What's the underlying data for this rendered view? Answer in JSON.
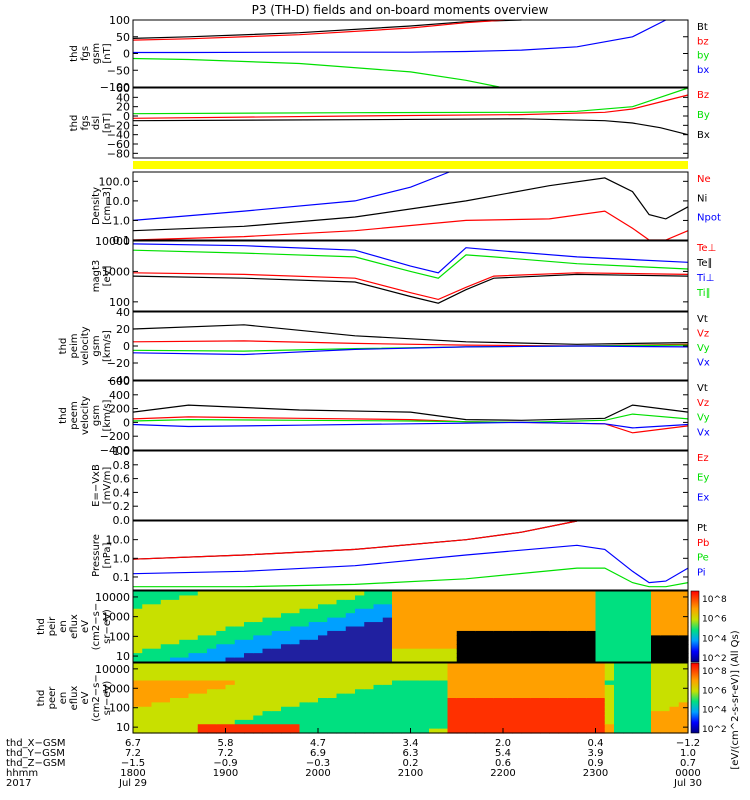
{
  "title": "P3 (TH-D) fields and on-board moments overview",
  "colors": {
    "black": "#000000",
    "red": "#ff0000",
    "green": "#00e000",
    "blue": "#0000ff",
    "yellow": "#ffff00"
  },
  "chart_data": [
    {
      "id": "fgs",
      "type": "line",
      "ylabel": [
        "thd",
        "fgs",
        "gsm",
        "[nT]"
      ],
      "ylim": [
        -100,
        100
      ],
      "yscale": "linear",
      "ticks": [
        "100",
        "50",
        "0",
        "−50",
        "−100"
      ],
      "tickvals": [
        100,
        50,
        0,
        -50,
        -100
      ],
      "legend": [
        {
          "name": "Bt",
          "color": "black"
        },
        {
          "name": "bz",
          "color": "red"
        },
        {
          "name": "by",
          "color": "green"
        },
        {
          "name": "bx",
          "color": "blue"
        }
      ],
      "series": [
        {
          "name": "Bt",
          "color": "black",
          "x": [
            0,
            0.1,
            0.3,
            0.5,
            0.6,
            0.7
          ],
          "y": [
            45,
            50,
            62,
            82,
            95,
            100
          ]
        },
        {
          "name": "bz",
          "color": "red",
          "x": [
            0,
            0.1,
            0.3,
            0.5,
            0.6,
            0.67
          ],
          "y": [
            40,
            44,
            56,
            76,
            92,
            100
          ]
        },
        {
          "name": "by",
          "color": "green",
          "x": [
            0,
            0.1,
            0.3,
            0.5,
            0.6,
            0.66
          ],
          "y": [
            -15,
            -18,
            -30,
            -55,
            -80,
            -100
          ]
        },
        {
          "name": "bx",
          "color": "blue",
          "x": [
            0,
            0.1,
            0.3,
            0.5,
            0.6,
            0.7,
            0.8,
            0.9,
            0.96
          ],
          "y": [
            3,
            3,
            4,
            4,
            6,
            10,
            20,
            50,
            100
          ]
        }
      ]
    },
    {
      "id": "fgs_dsl",
      "type": "line",
      "ylabel": [
        "thd",
        "fgs",
        "dsl",
        "[nT]"
      ],
      "ylim": [
        -90,
        60
      ],
      "yscale": "linear",
      "ticks": [
        "60",
        "40",
        "20",
        "0",
        "−20",
        "−40",
        "−60",
        "−80"
      ],
      "tickvals": [
        60,
        40,
        20,
        0,
        -20,
        -40,
        -60,
        -80
      ],
      "legend": [
        {
          "name": "Bz",
          "color": "red"
        },
        {
          "name": "By",
          "color": "green"
        },
        {
          "name": "Bx",
          "color": "black"
        }
      ],
      "series": [
        {
          "name": "By",
          "color": "green",
          "x": [
            0,
            0.4,
            0.7,
            0.8,
            0.9,
            0.95,
            1
          ],
          "y": [
            5,
            7,
            8,
            10,
            20,
            40,
            60
          ]
        },
        {
          "name": "Bz",
          "color": "red",
          "x": [
            0,
            0.4,
            0.7,
            0.85,
            0.9,
            0.95,
            1
          ],
          "y": [
            -5,
            0,
            3,
            8,
            15,
            30,
            45
          ]
        },
        {
          "name": "Bx",
          "color": "black",
          "x": [
            0,
            0.4,
            0.7,
            0.85,
            0.9,
            0.95,
            1
          ],
          "y": [
            -10,
            -8,
            -6,
            -10,
            -15,
            -25,
            -40
          ]
        }
      ]
    },
    {
      "id": "density",
      "type": "line",
      "ylabel": [
        "Density",
        "[cm−3]"
      ],
      "ylim": [
        0.1,
        300
      ],
      "yscale": "log",
      "ticks": [
        "100.0",
        "10.0",
        "1.0",
        "0.1"
      ],
      "tickvals": [
        100,
        10,
        1,
        0.1
      ],
      "legend": [
        {
          "name": "Ne",
          "color": "red"
        },
        {
          "name": "Ni",
          "color": "black"
        },
        {
          "name": "Npot",
          "color": "blue"
        }
      ],
      "series": [
        {
          "name": "Ni",
          "color": "black",
          "x": [
            0,
            0.2,
            0.4,
            0.6,
            0.75,
            0.85,
            0.9,
            0.93,
            0.96,
            1
          ],
          "y": [
            0.3,
            0.5,
            1.5,
            10,
            60,
            150,
            30,
            2,
            1.2,
            5
          ]
        },
        {
          "name": "Ne",
          "color": "red",
          "x": [
            0,
            0.2,
            0.4,
            0.6,
            0.75,
            0.85,
            0.9,
            0.93,
            0.96,
            1
          ],
          "y": [
            0.1,
            0.15,
            0.3,
            1.0,
            1.2,
            3,
            0.4,
            0.1,
            0.1,
            0.3
          ]
        },
        {
          "name": "Npot",
          "color": "blue",
          "x": [
            0,
            0.2,
            0.4,
            0.5,
            0.57
          ],
          "y": [
            1,
            3,
            10,
            50,
            300
          ]
        }
      ]
    },
    {
      "id": "mag",
      "type": "line",
      "ylabel": [
        "magt3",
        "[eV]"
      ],
      "ylim": [
        50,
        10000
      ],
      "yscale": "log",
      "ticks": [
        "10000",
        "1000",
        "100"
      ],
      "tickvals": [
        10000,
        1000,
        100
      ],
      "legend": [
        {
          "name": "Te⊥",
          "color": "red"
        },
        {
          "name": "Te∥",
          "color": "black"
        },
        {
          "name": "Ti⊥",
          "color": "blue"
        },
        {
          "name": "Ti∥",
          "color": "green"
        }
      ],
      "series": [
        {
          "name": "Ti⊥",
          "color": "blue",
          "x": [
            0,
            0.2,
            0.4,
            0.5,
            0.55,
            0.6,
            0.65,
            0.8,
            1
          ],
          "y": [
            8000,
            7000,
            5000,
            1500,
            900,
            6000,
            5000,
            3000,
            2000
          ]
        },
        {
          "name": "Ti∥",
          "color": "green",
          "x": [
            0,
            0.2,
            0.4,
            0.5,
            0.55,
            0.6,
            0.65,
            0.8,
            1
          ],
          "y": [
            5000,
            4000,
            3000,
            1000,
            600,
            3500,
            3000,
            1800,
            1200
          ]
        },
        {
          "name": "Te⊥",
          "color": "red",
          "x": [
            0,
            0.2,
            0.4,
            0.5,
            0.55,
            0.6,
            0.65,
            0.8,
            1
          ],
          "y": [
            900,
            800,
            600,
            200,
            120,
            300,
            700,
            900,
            800
          ]
        },
        {
          "name": "Te∥",
          "color": "black",
          "x": [
            0,
            0.2,
            0.4,
            0.5,
            0.55,
            0.6,
            0.65,
            0.8,
            1
          ],
          "y": [
            700,
            600,
            450,
            150,
            90,
            250,
            600,
            800,
            700
          ]
        }
      ]
    },
    {
      "id": "peim",
      "type": "line",
      "ylabel": [
        "thd",
        "peim",
        "velocity",
        "gsm",
        "[km/s]"
      ],
      "ylim": [
        -40,
        40
      ],
      "yscale": "linear",
      "ticks": [
        "40",
        "20",
        "0",
        "−20",
        "−40"
      ],
      "tickvals": [
        40,
        20,
        0,
        -20,
        -40
      ],
      "legend": [
        {
          "name": "Vt",
          "color": "black"
        },
        {
          "name": "Vz",
          "color": "red"
        },
        {
          "name": "Vy",
          "color": "green"
        },
        {
          "name": "Vx",
          "color": "blue"
        }
      ],
      "series": [
        {
          "name": "Vt",
          "color": "black",
          "x": [
            0,
            0.2,
            0.4,
            0.6,
            0.8,
            1
          ],
          "y": [
            20,
            25,
            12,
            5,
            2,
            4
          ]
        },
        {
          "name": "Vz",
          "color": "red",
          "x": [
            0,
            0.2,
            0.4,
            0.6,
            0.8,
            1
          ],
          "y": [
            5,
            6,
            3,
            1,
            0,
            2
          ]
        },
        {
          "name": "Vy",
          "color": "green",
          "x": [
            0,
            0.2,
            0.4,
            0.6,
            0.8,
            1
          ],
          "y": [
            -5,
            -6,
            -3,
            -1,
            0,
            1
          ]
        },
        {
          "name": "Vx",
          "color": "blue",
          "x": [
            0,
            0.2,
            0.4,
            0.6,
            0.8,
            1
          ],
          "y": [
            -8,
            -10,
            -4,
            -1,
            0,
            -1
          ]
        }
      ]
    },
    {
      "id": "peem",
      "type": "line",
      "ylabel": [
        "thd",
        "peem",
        "velocity",
        "gsm",
        "[km/s]"
      ],
      "ylim": [
        -400,
        600
      ],
      "yscale": "linear",
      "ticks": [
        "600",
        "400",
        "200",
        "0",
        "−200",
        "−400"
      ],
      "tickvals": [
        600,
        400,
        200,
        0,
        -200,
        -400
      ],
      "legend": [
        {
          "name": "Vt",
          "color": "black"
        },
        {
          "name": "Vz",
          "color": "red"
        },
        {
          "name": "Vy",
          "color": "green"
        },
        {
          "name": "Vx",
          "color": "blue"
        }
      ],
      "series": [
        {
          "name": "Vt",
          "color": "black",
          "x": [
            0,
            0.1,
            0.3,
            0.5,
            0.6,
            0.7,
            0.85,
            0.9,
            1
          ],
          "y": [
            150,
            250,
            180,
            150,
            40,
            30,
            60,
            250,
            150
          ]
        },
        {
          "name": "Vz",
          "color": "red",
          "x": [
            0,
            0.1,
            0.3,
            0.5,
            0.6,
            0.7,
            0.85,
            0.9,
            1
          ],
          "y": [
            50,
            80,
            60,
            40,
            10,
            0,
            -20,
            -150,
            -50
          ]
        },
        {
          "name": "Vy",
          "color": "green",
          "x": [
            0,
            0.1,
            0.3,
            0.5,
            0.6,
            0.7,
            0.85,
            0.9,
            1
          ],
          "y": [
            20,
            40,
            30,
            20,
            10,
            0,
            30,
            120,
            50
          ]
        },
        {
          "name": "Vx",
          "color": "blue",
          "x": [
            0,
            0.1,
            0.3,
            0.5,
            0.6,
            0.7,
            0.85,
            0.9,
            1
          ],
          "y": [
            -30,
            -60,
            -40,
            -20,
            -10,
            0,
            -20,
            -80,
            -30
          ]
        }
      ]
    },
    {
      "id": "efield",
      "type": "line",
      "ylabel": [
        "E=−VxB",
        "[mV/m]"
      ],
      "ylim": [
        0,
        1
      ],
      "yscale": "linear",
      "ticks": [
        "1.0",
        "0.8",
        "0.6",
        "0.4",
        "0.2",
        "0.0"
      ],
      "tickvals": [
        1,
        0.8,
        0.6,
        0.4,
        0.2,
        0
      ],
      "legend": [
        {
          "name": "Ez",
          "color": "red"
        },
        {
          "name": "Ey",
          "color": "green"
        },
        {
          "name": "Ex",
          "color": "blue"
        }
      ],
      "series": []
    },
    {
      "id": "pressure",
      "type": "line",
      "ylabel": [
        "Pressure",
        "[nPa]"
      ],
      "ylim": [
        0.02,
        100
      ],
      "yscale": "log",
      "ticks": [
        "10.0",
        "1.0",
        "0.1"
      ],
      "tickvals": [
        10,
        1,
        0.1
      ],
      "legend": [
        {
          "name": "Pt",
          "color": "black"
        },
        {
          "name": "Pb",
          "color": "red"
        },
        {
          "name": "Pe",
          "color": "green"
        },
        {
          "name": "Pi",
          "color": "blue"
        }
      ],
      "series": [
        {
          "name": "Pt",
          "color": "black",
          "x": [
            0,
            0.2,
            0.4,
            0.6,
            0.7,
            0.8
          ],
          "y": [
            0.9,
            1.5,
            3,
            10,
            25,
            100
          ]
        },
        {
          "name": "Pb",
          "color": "red",
          "x": [
            0,
            0.2,
            0.4,
            0.6,
            0.7,
            0.8
          ],
          "y": [
            0.9,
            1.5,
            3,
            10,
            25,
            100
          ]
        },
        {
          "name": "Pi",
          "color": "blue",
          "x": [
            0,
            0.2,
            0.4,
            0.6,
            0.8,
            0.85,
            0.9,
            0.93,
            0.96,
            1
          ],
          "y": [
            0.15,
            0.2,
            0.4,
            1.5,
            5,
            3,
            0.2,
            0.05,
            0.06,
            0.3
          ]
        },
        {
          "name": "Pe",
          "color": "green",
          "x": [
            0,
            0.2,
            0.4,
            0.6,
            0.8,
            0.85,
            0.9,
            0.93,
            0.96,
            1
          ],
          "y": [
            0.03,
            0.03,
            0.04,
            0.08,
            0.3,
            0.3,
            0.05,
            0.03,
            0.03,
            0.05
          ]
        }
      ]
    },
    {
      "id": "peir",
      "type": "heatmap",
      "ylabel": [
        "thd",
        "peir",
        "en",
        "eflux",
        "eV",
        "(cm2−s−",
        "sr−eV)"
      ],
      "ylim": [
        5,
        20000
      ],
      "yscale": "log",
      "ticks": [
        "10000",
        "1000",
        "100",
        "10"
      ],
      "tickvals": [
        10000,
        1000,
        100,
        10
      ]
    },
    {
      "id": "peer",
      "type": "heatmap",
      "ylabel": [
        "thd",
        "peer",
        "en",
        "eflux",
        "eV",
        "(cm2−s−",
        "sr−eV)"
      ],
      "ylim": [
        5,
        20000
      ],
      "yscale": "log",
      "ticks": [
        "10000",
        "1000",
        "100",
        "10"
      ],
      "tickvals": [
        10000,
        1000,
        100,
        10
      ]
    }
  ],
  "colorbar": {
    "label": "[eV/(cm^2-s-sr-eV)] (All Qs)",
    "ticks": [
      "10^8",
      "10^6",
      "10^4",
      "10^2"
    ],
    "ticks2": [
      "10^8",
      "10^6",
      "10^4",
      "10^2"
    ]
  },
  "xaxis": {
    "row_labels": [
      "thd_X−GSM",
      "thd_Y−GSM",
      "thd_Z−GSM",
      "hhmm",
      "2017"
    ],
    "columns": [
      {
        "vals": [
          "6.7",
          "7.2",
          "−1.5",
          "1800",
          "Jul 29"
        ]
      },
      {
        "vals": [
          "5.8",
          "7.2",
          "−0.9",
          "1900",
          ""
        ]
      },
      {
        "vals": [
          "4.7",
          "6.9",
          "−0.3",
          "2000",
          ""
        ]
      },
      {
        "vals": [
          "3.4",
          "6.3",
          "0.2",
          "2100",
          ""
        ]
      },
      {
        "vals": [
          "2.0",
          "5.4",
          "0.6",
          "2200",
          ""
        ]
      },
      {
        "vals": [
          "0.4",
          "3.9",
          "0.9",
          "2300",
          ""
        ]
      },
      {
        "vals": [
          "−1.2",
          "1.0",
          "0.7",
          "0000",
          "Jul 30"
        ]
      }
    ]
  }
}
